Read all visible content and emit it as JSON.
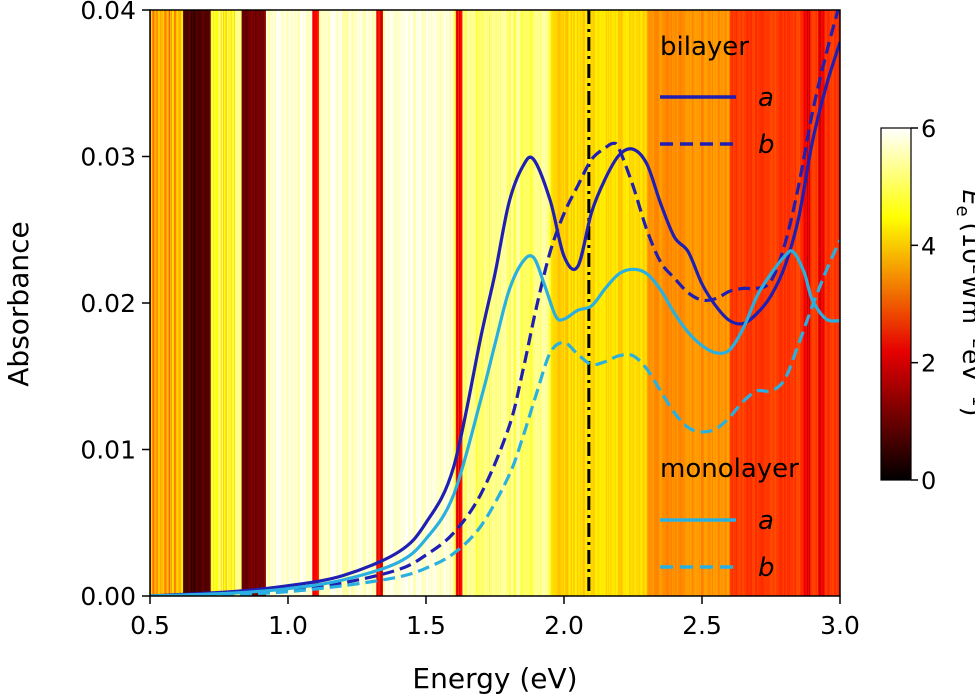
{
  "chart_data": {
    "type": "line",
    "xlabel": "Energy (eV)",
    "ylabel": "Absorbance",
    "xlim": [
      0.5,
      3.0
    ],
    "ylim": [
      0.0,
      0.04
    ],
    "xticks": [
      "0.5",
      "1.0",
      "1.5",
      "2.0",
      "2.5",
      "3.0"
    ],
    "yticks": [
      "0.00",
      "0.01",
      "0.02",
      "0.03",
      "0.04"
    ],
    "grid": false,
    "reference_line": {
      "x": 2.09,
      "style": "dash-dot",
      "color": "#000000"
    },
    "background": {
      "description_colormap": "hot",
      "spectrum_dark_bands_eV": [
        0.64,
        0.66,
        0.68,
        0.86,
        0.88,
        1.1,
        1.33,
        1.62,
        2.88,
        2.93
      ]
    },
    "legend_groups": [
      {
        "title": "bilayer",
        "entries": [
          {
            "label": "a",
            "style": "solid",
            "color": "#1f1fb4"
          },
          {
            "label": "b",
            "style": "dashed",
            "color": "#1f1fb4"
          }
        ]
      },
      {
        "title": "monolayer",
        "entries": [
          {
            "label": "a",
            "style": "solid",
            "color": "#2ab0e0"
          },
          {
            "label": "b",
            "style": "dashed",
            "color": "#2ab0e0"
          }
        ]
      }
    ],
    "series": [
      {
        "name": "bilayer a",
        "color": "#1f1fb4",
        "dash": "solid",
        "x": [
          0.5,
          0.8,
          1.0,
          1.2,
          1.4,
          1.5,
          1.6,
          1.7,
          1.75,
          1.8,
          1.85,
          1.89,
          1.95,
          2.0,
          2.05,
          2.1,
          2.15,
          2.2,
          2.25,
          2.3,
          2.35,
          2.4,
          2.45,
          2.5,
          2.55,
          2.6,
          2.65,
          2.7,
          2.75,
          2.8,
          2.85,
          2.9,
          2.95,
          3.0
        ],
        "y": [
          0.0,
          0.0003,
          0.0007,
          0.0014,
          0.003,
          0.005,
          0.0088,
          0.0178,
          0.022,
          0.0268,
          0.0293,
          0.0298,
          0.027,
          0.0232,
          0.0225,
          0.0262,
          0.0285,
          0.0301,
          0.0305,
          0.0295,
          0.0268,
          0.0245,
          0.0235,
          0.0213,
          0.0198,
          0.0188,
          0.0186,
          0.0193,
          0.0205,
          0.0225,
          0.0258,
          0.031,
          0.0348,
          0.0378
        ]
      },
      {
        "name": "bilayer b",
        "color": "#1f1fb4",
        "dash": "dashed",
        "x": [
          0.5,
          0.8,
          1.0,
          1.2,
          1.4,
          1.5,
          1.6,
          1.7,
          1.8,
          1.85,
          1.9,
          1.95,
          2.0,
          2.05,
          2.1,
          2.15,
          2.18,
          2.2,
          2.25,
          2.3,
          2.35,
          2.4,
          2.45,
          2.5,
          2.55,
          2.6,
          2.65,
          2.7,
          2.75,
          2.8,
          2.85,
          2.9,
          2.95,
          3.0
        ],
        "y": [
          0.0,
          0.0002,
          0.0004,
          0.0009,
          0.0018,
          0.0028,
          0.0043,
          0.007,
          0.0115,
          0.0153,
          0.0197,
          0.0235,
          0.0261,
          0.028,
          0.0298,
          0.0306,
          0.0309,
          0.0305,
          0.028,
          0.025,
          0.0228,
          0.0217,
          0.0207,
          0.0202,
          0.0203,
          0.0208,
          0.021,
          0.021,
          0.0215,
          0.024,
          0.028,
          0.033,
          0.037,
          0.0405
        ]
      },
      {
        "name": "monolayer a",
        "color": "#2ab0e0",
        "dash": "solid",
        "x": [
          0.5,
          0.8,
          1.0,
          1.2,
          1.4,
          1.5,
          1.6,
          1.7,
          1.75,
          1.8,
          1.85,
          1.89,
          1.93,
          1.97,
          2.0,
          2.05,
          2.1,
          2.15,
          2.2,
          2.25,
          2.3,
          2.35,
          2.4,
          2.45,
          2.5,
          2.55,
          2.6,
          2.65,
          2.7,
          2.75,
          2.8,
          2.83,
          2.87,
          2.9,
          2.95,
          3.0
        ],
        "y": [
          0.0,
          0.0002,
          0.0005,
          0.0011,
          0.0023,
          0.0039,
          0.0069,
          0.0135,
          0.0172,
          0.0208,
          0.0228,
          0.0231,
          0.0212,
          0.0191,
          0.0189,
          0.0195,
          0.0198,
          0.021,
          0.022,
          0.0223,
          0.022,
          0.0209,
          0.0193,
          0.018,
          0.0171,
          0.0166,
          0.0168,
          0.0183,
          0.0205,
          0.022,
          0.0232,
          0.0235,
          0.0221,
          0.0202,
          0.0189,
          0.0188
        ]
      },
      {
        "name": "monolayer b",
        "color": "#2ab0e0",
        "dash": "dashed",
        "x": [
          0.5,
          0.8,
          1.0,
          1.2,
          1.4,
          1.5,
          1.6,
          1.7,
          1.8,
          1.85,
          1.9,
          1.95,
          2.0,
          2.05,
          2.1,
          2.15,
          2.2,
          2.25,
          2.3,
          2.35,
          2.4,
          2.45,
          2.5,
          2.55,
          2.6,
          2.65,
          2.7,
          2.75,
          2.8,
          2.85,
          2.9,
          2.95,
          3.0
        ],
        "y": [
          0.0,
          0.0001,
          0.0003,
          0.0007,
          0.0013,
          0.0019,
          0.0029,
          0.0048,
          0.0082,
          0.0108,
          0.0138,
          0.0166,
          0.0173,
          0.0165,
          0.0158,
          0.016,
          0.0164,
          0.0164,
          0.0155,
          0.014,
          0.0125,
          0.0115,
          0.0112,
          0.0114,
          0.0122,
          0.0133,
          0.014,
          0.014,
          0.0148,
          0.0172,
          0.0198,
          0.0222,
          0.0243
        ]
      }
    ],
    "colorbar": {
      "title_symbol": "E",
      "title_subscript": "e",
      "title_open": "(10",
      "title_sup1": "2",
      "title_mid": "Wm",
      "title_sup2": "−2",
      "title_mid2": "eV",
      "title_sup3": "−1",
      "title_close": ")",
      "range": [
        0,
        6
      ],
      "ticks": [
        "0",
        "2",
        "4",
        "6"
      ],
      "colormap": "hot"
    }
  }
}
